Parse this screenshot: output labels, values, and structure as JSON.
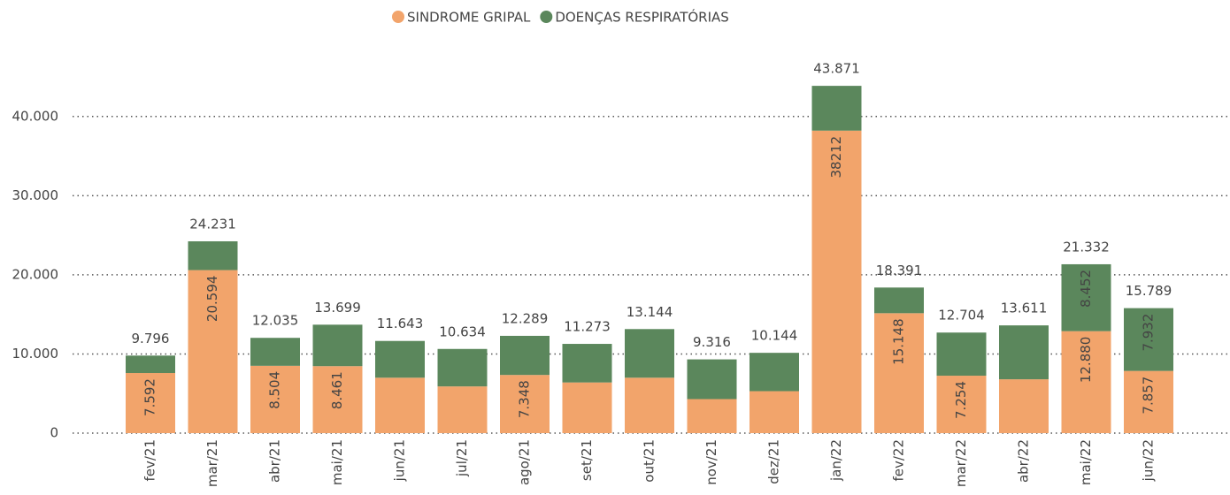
{
  "chart_data": {
    "type": "stacked-bar",
    "categories": [
      "fev/21",
      "mar/21",
      "abr/21",
      "mai/21",
      "jun/21",
      "jul/21",
      "ago/21",
      "set/21",
      "out/21",
      "nov/21",
      "dez/21",
      "jan/22",
      "fev/22",
      "mar/22",
      "abr/22",
      "mai/22",
      "jun/22"
    ],
    "series": [
      {
        "name": "SINDROME GRIPAL",
        "color": "#f2a46b",
        "values": [
          7592,
          20594,
          8504,
          8461,
          7000,
          5900,
          7348,
          6400,
          7000,
          4300,
          5300,
          38212,
          15148,
          7254,
          6800,
          12880,
          7857
        ],
        "value_labels": [
          "7.592",
          "20.594",
          "8.504",
          "8.461",
          null,
          null,
          "7.348",
          null,
          null,
          null,
          null,
          "38212",
          "15.148",
          "7.254",
          null,
          "12.880",
          "7.857"
        ]
      },
      {
        "name": "DOENÇAS RESPIRATÓRIAS",
        "color": "#5b875c",
        "values": [
          2204,
          3637,
          3531,
          5238,
          4643,
          4734,
          4941,
          4873,
          6144,
          5016,
          4844,
          5659,
          3243,
          5450,
          6811,
          8452,
          7932
        ],
        "value_labels": [
          null,
          null,
          null,
          null,
          null,
          null,
          null,
          null,
          null,
          null,
          null,
          null,
          null,
          null,
          null,
          "8.452",
          "7.932"
        ]
      }
    ],
    "totals": {
      "values": [
        9796,
        24231,
        12035,
        13699,
        11643,
        10634,
        12289,
        11273,
        13144,
        9316,
        10144,
        43871,
        18391,
        12704,
        13611,
        21332,
        15789
      ],
      "value_labels": [
        "9.796",
        "24.231",
        "12.035",
        "13.699",
        "11.643",
        "10.634",
        "12.289",
        "11.273",
        "13.144",
        "9.316",
        "10.144",
        "43.871",
        "18.391",
        "12.704",
        "13.611",
        "21.332",
        "15.789"
      ]
    },
    "ylim": [
      0,
      45000
    ],
    "yticks": [
      0,
      {
        "value": 10000,
        "label": "10.000"
      },
      {
        "value": 20000,
        "label": "20.000"
      },
      {
        "value": 30000,
        "label": "30.000"
      },
      {
        "value": 40000,
        "label": "40.000"
      }
    ],
    "grid": true,
    "legend": "top"
  }
}
